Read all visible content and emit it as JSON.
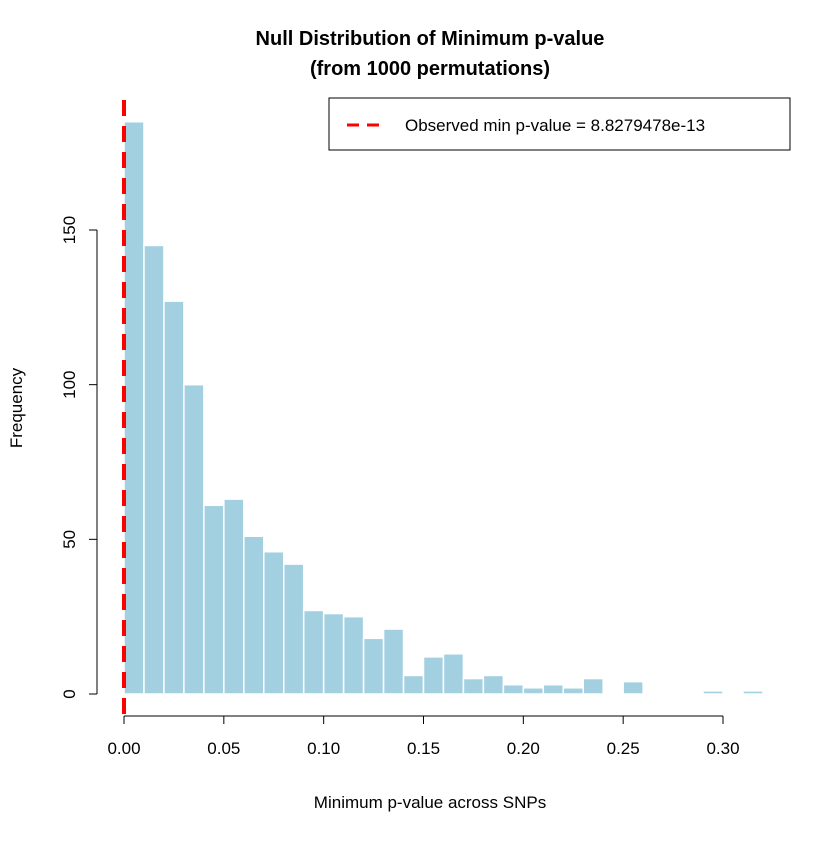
{
  "chart_data": {
    "type": "bar",
    "subtype": "histogram",
    "title": "Null Distribution of Minimum p-value",
    "subtitle": "(from 1000 permutations)",
    "xlabel": "Minimum p-value across SNPs",
    "ylabel": "Frequency",
    "xlim": [
      0,
      0.32
    ],
    "ylim": [
      0,
      185
    ],
    "x_ticks": [
      0,
      0.05,
      0.1,
      0.15,
      0.2,
      0.25,
      0.3
    ],
    "x_tick_labels": [
      "0.00",
      "0.05",
      "0.10",
      "0.15",
      "0.20",
      "0.25",
      "0.30"
    ],
    "y_ticks": [
      0,
      50,
      100,
      150
    ],
    "y_tick_labels": [
      "0",
      "50",
      "100",
      "150"
    ],
    "bin_width": 0.01,
    "bin_starts": [
      0,
      0.01,
      0.02,
      0.03,
      0.04,
      0.05,
      0.06,
      0.07,
      0.08,
      0.09,
      0.1,
      0.11,
      0.12,
      0.13,
      0.14,
      0.15,
      0.16,
      0.17,
      0.18,
      0.19,
      0.2,
      0.21,
      0.22,
      0.23,
      0.24,
      0.25,
      0.26,
      0.27,
      0.28,
      0.29,
      0.3,
      0.31
    ],
    "values": [
      185,
      145,
      127,
      100,
      61,
      63,
      51,
      46,
      42,
      27,
      26,
      25,
      18,
      21,
      6,
      12,
      13,
      5,
      6,
      3,
      2,
      3,
      2,
      5,
      0,
      4,
      0,
      0,
      0,
      1,
      0,
      1
    ],
    "bar_color": "#a3d0e1",
    "observed_line": {
      "x": 8.8279478e-13,
      "color": "#ff0000",
      "style": "dashed"
    },
    "legend": {
      "position": "top-right",
      "entries": [
        "Observed min p-value = 8.8279478e-13"
      ]
    }
  }
}
